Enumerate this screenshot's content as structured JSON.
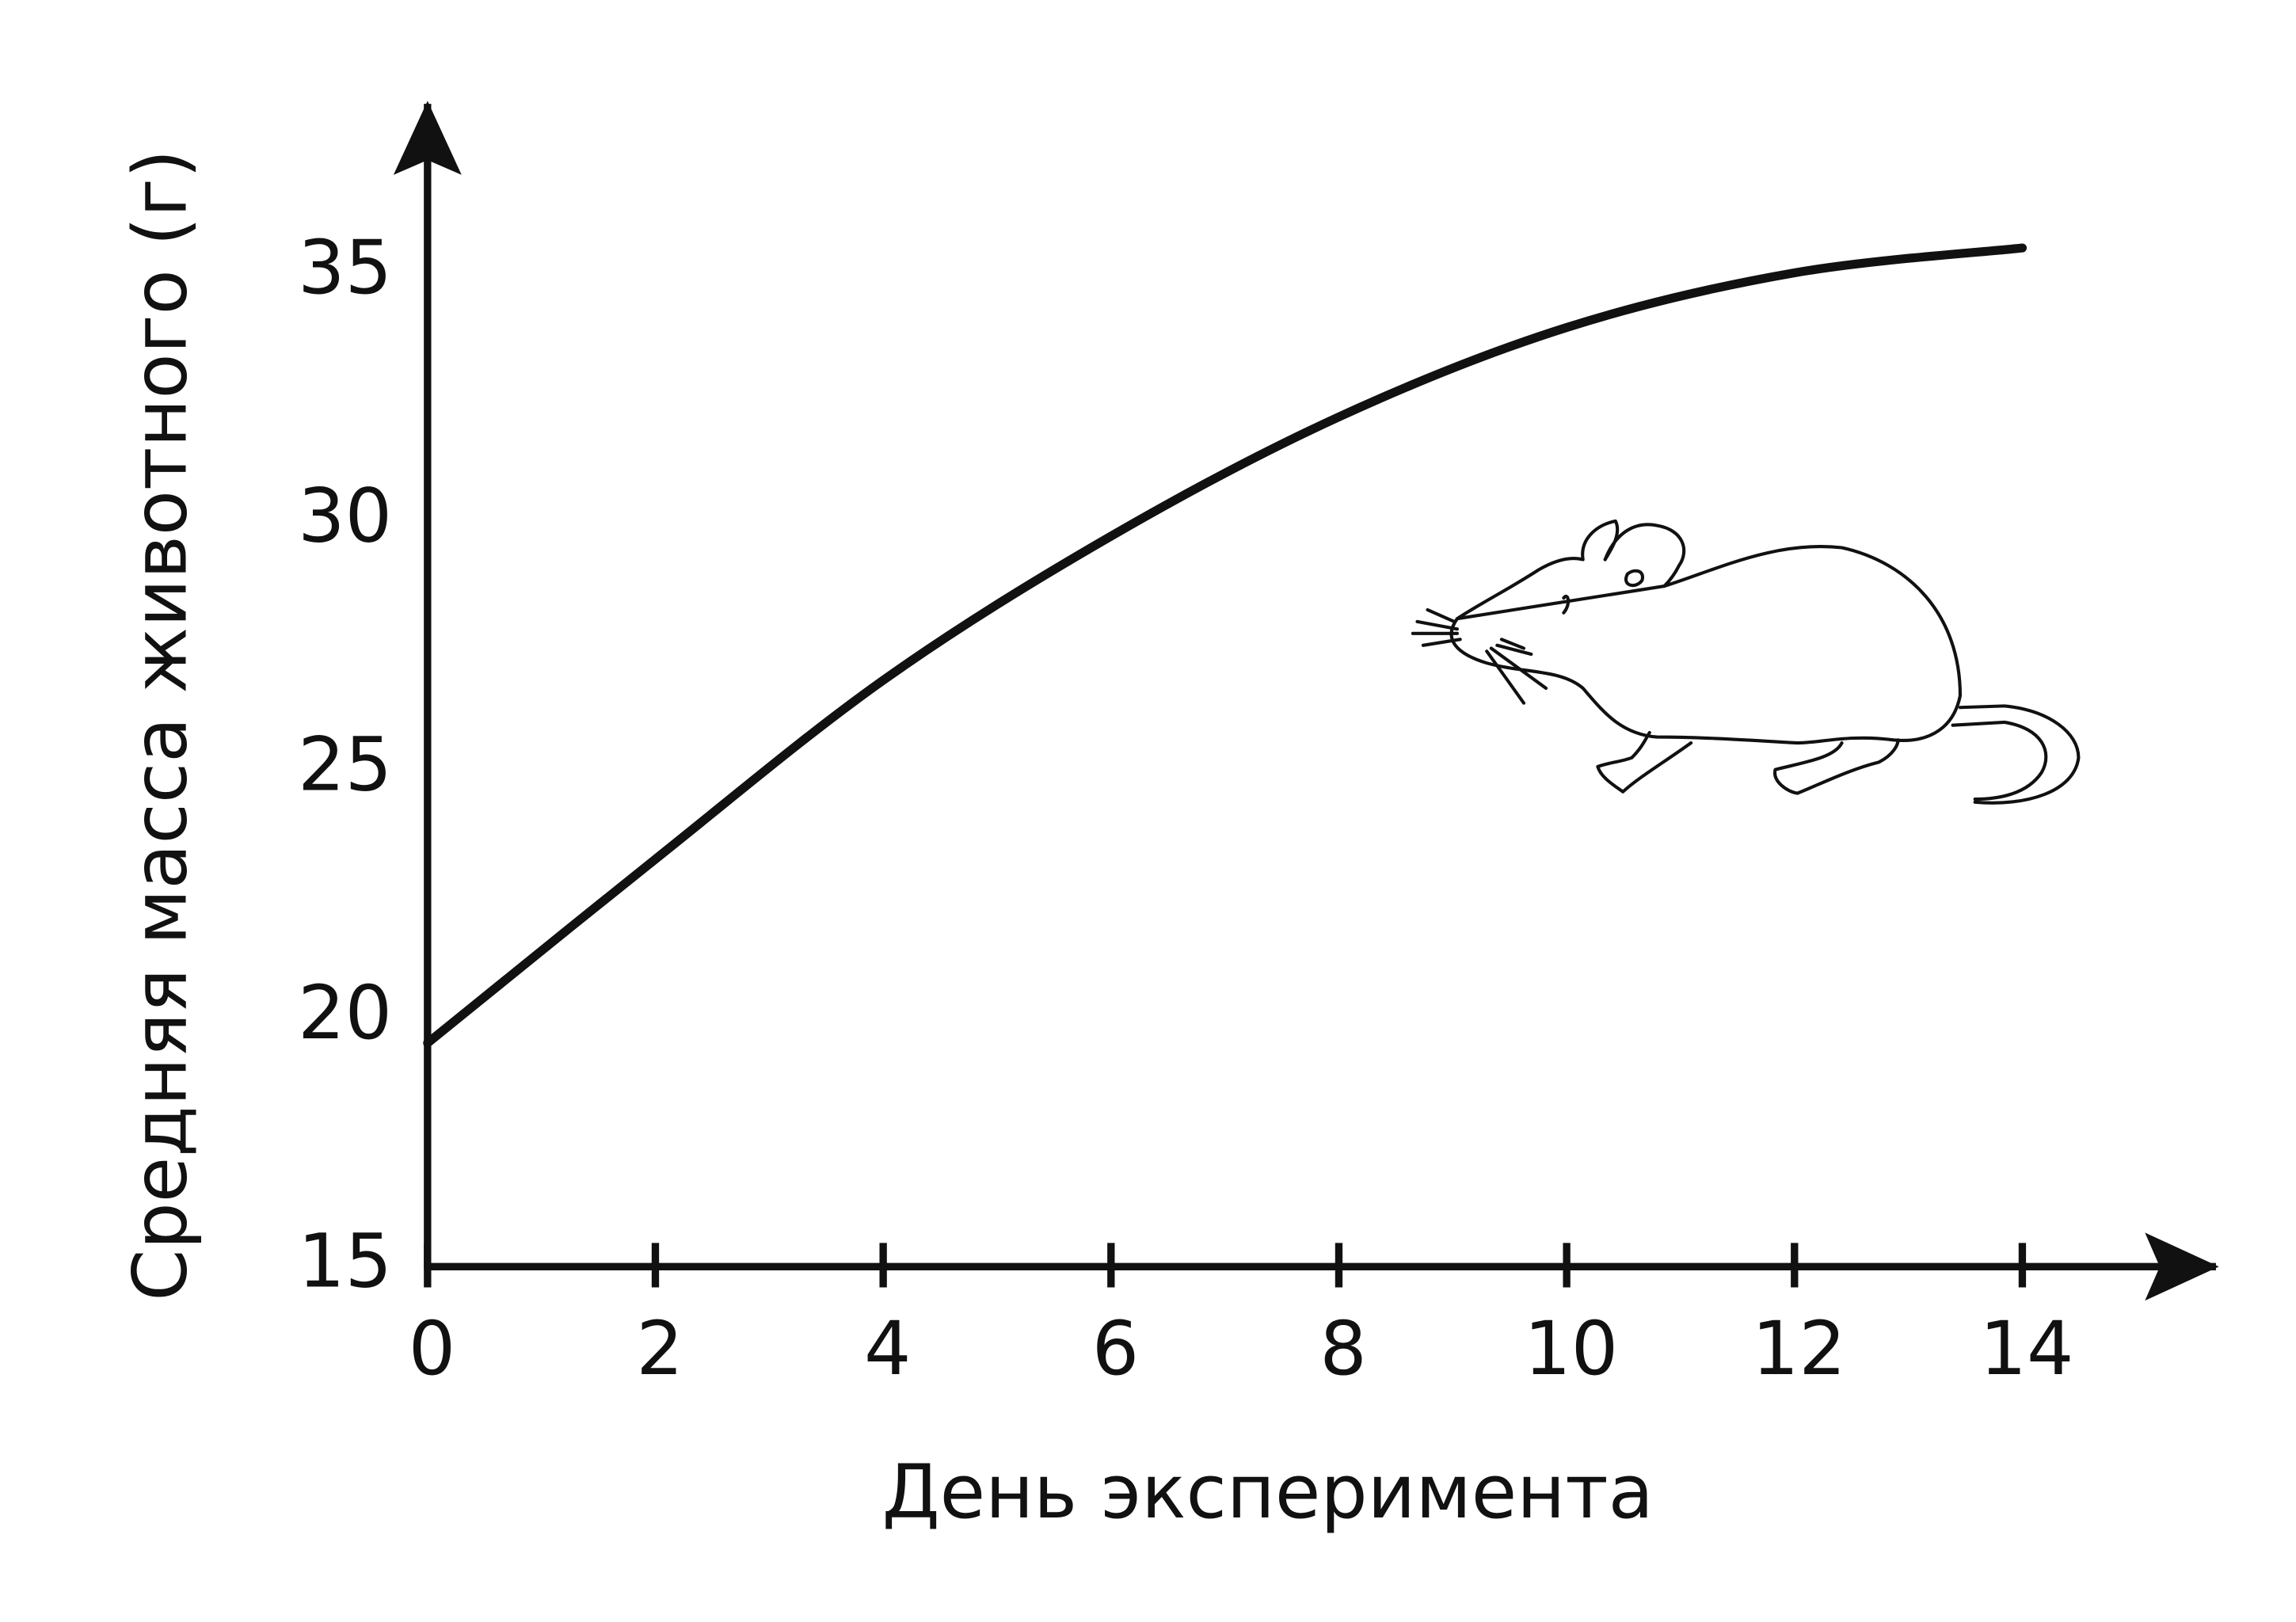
{
  "chart_data": {
    "type": "line",
    "xlabel": "День эксперимента",
    "ylabel": "Средняя масса животного (г)",
    "x": [
      0,
      2,
      4,
      6,
      8,
      10,
      12,
      14
    ],
    "series": [
      {
        "color": "#111111",
        "values": [
          19.5,
          23.2,
          26.8,
          29.7,
          32.1,
          33.9,
          35.0,
          35.5
        ]
      }
    ],
    "xlim": [
      0,
      15.7
    ],
    "ylim": [
      15,
      38.4
    ],
    "xticks": [
      0,
      2,
      4,
      6,
      8,
      10,
      12,
      14
    ],
    "yticks": [
      15,
      20,
      25,
      30,
      35
    ],
    "grid": false
  }
}
